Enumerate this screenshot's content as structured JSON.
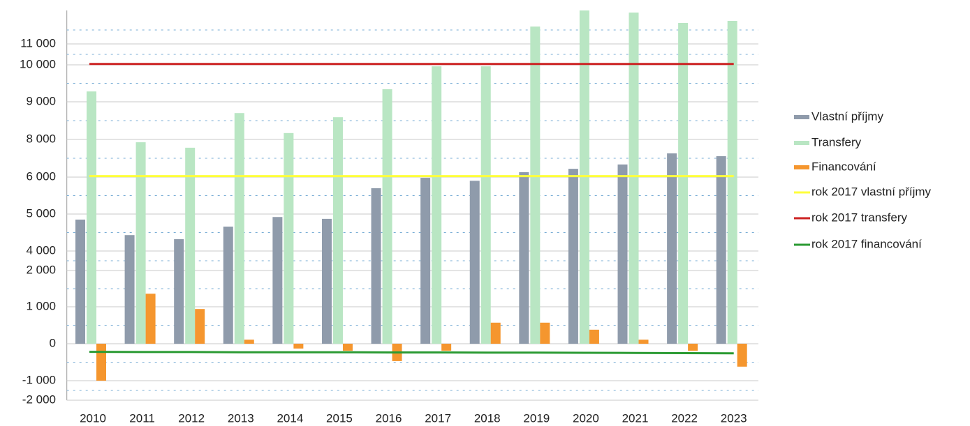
{
  "chart_data": {
    "type": "bar",
    "categories": [
      "2010",
      "2011",
      "2012",
      "2013",
      "2014",
      "2015",
      "2016",
      "2017",
      "2018",
      "2019",
      "2020",
      "2021",
      "2022",
      "2023"
    ],
    "series": [
      {
        "name": "Vlastní příjmy",
        "color": "#8f9bab",
        "kind": "bar",
        "values": [
          4850,
          4430,
          4320,
          4660,
          4920,
          4870,
          5700,
          5980,
          5900,
          6260,
          6440,
          6670,
          7260,
          7110
        ]
      },
      {
        "name": "Transfery",
        "color": "#b9e6c3",
        "kind": "bar",
        "values": [
          9280,
          7850,
          7560,
          8700,
          8170,
          8590,
          9340,
          9960,
          9960,
          11830,
          12600,
          12500,
          12000,
          12100
        ]
      },
      {
        "name": "Financování",
        "color": "#f5962e",
        "kind": "bar",
        "values": [
          -1000,
          1360,
          940,
          110,
          -130,
          -190,
          -470,
          -190,
          570,
          570,
          380,
          110,
          -190,
          -620
        ]
      },
      {
        "name": "rok 2017 vlastní příjmy",
        "color": "#ffff3c",
        "kind": "line",
        "values": [
          6050,
          6050,
          6050,
          6050,
          6050,
          6050,
          6050,
          6050,
          6050,
          6050,
          6050,
          6050,
          6050,
          6050
        ]
      },
      {
        "name": "rok 2017 transfery",
        "color": "#cc2222",
        "kind": "line",
        "values": [
          10040,
          10040,
          10040,
          10040,
          10040,
          10040,
          10040,
          10040,
          10040,
          10040,
          10040,
          10040,
          10040,
          10040
        ]
      },
      {
        "name": "rok 2017 financování",
        "color": "#2a9a32",
        "kind": "line",
        "values": [
          -220,
          -225,
          -225,
          -230,
          -230,
          -230,
          -235,
          -235,
          -240,
          -240,
          -245,
          -250,
          -255,
          -260
        ]
      }
    ],
    "ylim": [
      -2000,
      12600
    ],
    "yticks": [
      {
        "value": 11000,
        "label": "11 000"
      },
      {
        "value": 10000,
        "label": "10 000"
      },
      {
        "value": 9000,
        "label": "9 000"
      },
      {
        "value": 8000,
        "label": "8 000"
      },
      {
        "value": 6000,
        "label": "6 000"
      },
      {
        "value": 5000,
        "label": "5 000"
      },
      {
        "value": 4000,
        "label": "4 000"
      },
      {
        "value": 2000,
        "label": "2 000"
      },
      {
        "value": 1000,
        "label": "1 000"
      },
      0,
      {
        "value": -1000,
        "label": "-1 000"
      },
      {
        "value": -2000,
        "label": "-2 000"
      }
    ],
    "grid": true
  }
}
